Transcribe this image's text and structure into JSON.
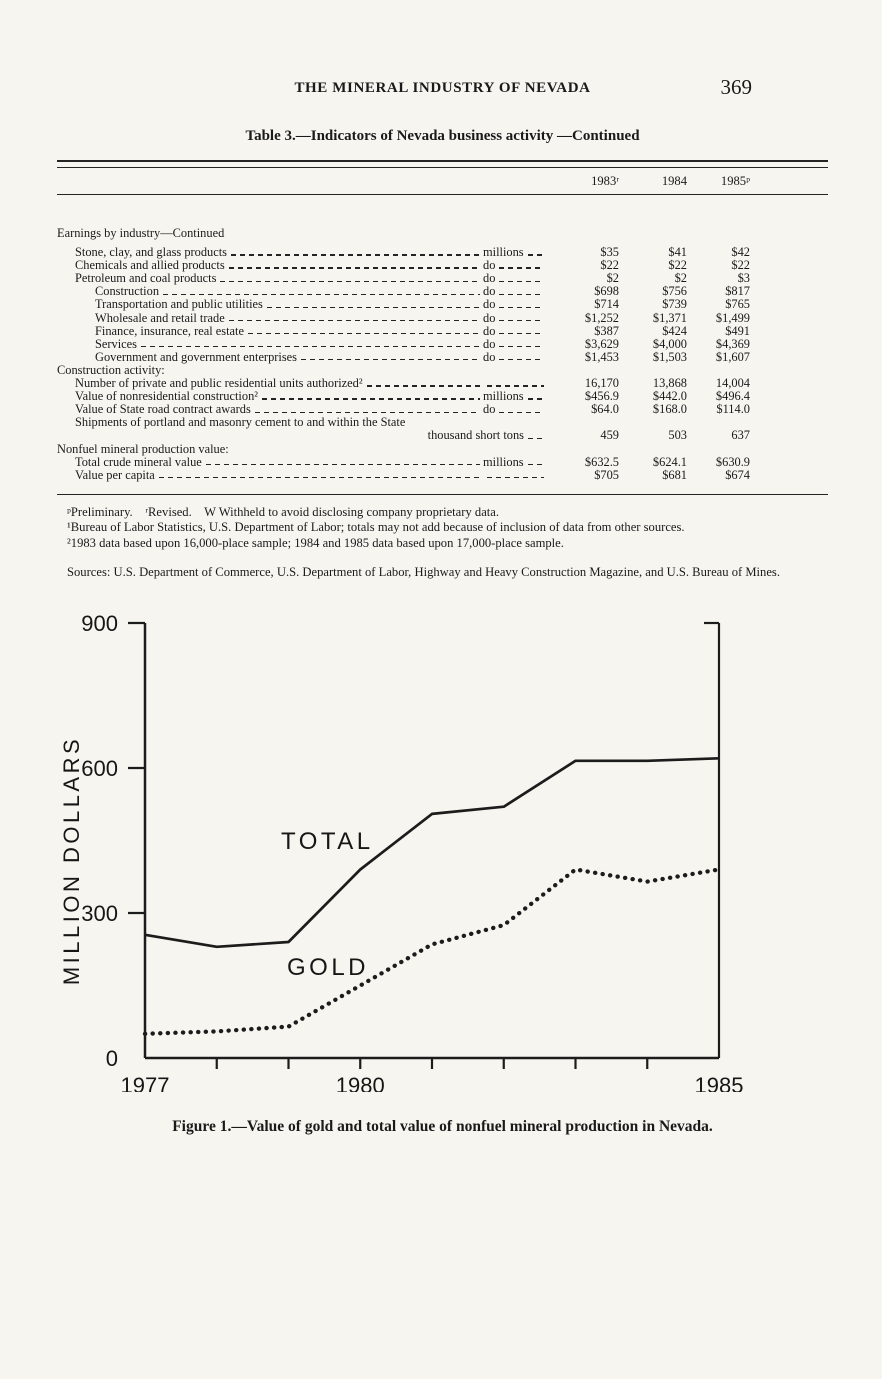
{
  "page": {
    "header_title": "THE MINERAL INDUSTRY OF NEVADA",
    "page_number": "369"
  },
  "table": {
    "title": "Table 3.—Indicators of Nevada business activity —Continued",
    "col_headers": [
      "1983ʳ",
      "1984",
      "1985ᵖ"
    ],
    "rows": [
      {
        "type": "section",
        "label": "Earnings by industry—Continued"
      },
      {
        "type": "data",
        "indent": 1,
        "label": "Stone, clay, and glass products",
        "unit": "millions",
        "values": [
          "$35",
          "$41",
          "$42"
        ]
      },
      {
        "type": "data",
        "indent": 1,
        "label": "Chemicals and allied products",
        "unit": "do",
        "values": [
          "$22",
          "$22",
          "$22"
        ]
      },
      {
        "type": "data",
        "indent": 1,
        "label": "Petroleum and coal products",
        "unit": "do",
        "values": [
          "$2",
          "$2",
          "$3"
        ]
      },
      {
        "type": "data",
        "indent": 2,
        "label": "Construction",
        "unit": "do",
        "values": [
          "$698",
          "$756",
          "$817"
        ]
      },
      {
        "type": "data",
        "indent": 2,
        "label": "Transportation and public utilities",
        "unit": "do",
        "values": [
          "$714",
          "$739",
          "$765"
        ]
      },
      {
        "type": "data",
        "indent": 2,
        "label": "Wholesale and retail trade",
        "unit": "do",
        "values": [
          "$1,252",
          "$1,371",
          "$1,499"
        ]
      },
      {
        "type": "data",
        "indent": 2,
        "label": "Finance, insurance, real estate",
        "unit": "do",
        "values": [
          "$387",
          "$424",
          "$491"
        ]
      },
      {
        "type": "data",
        "indent": 2,
        "label": "Services",
        "unit": "do",
        "values": [
          "$3,629",
          "$4,000",
          "$4,369"
        ]
      },
      {
        "type": "data",
        "indent": 2,
        "label": "Government and government enterprises",
        "unit": "do",
        "values": [
          "$1,453",
          "$1,503",
          "$1,607"
        ]
      },
      {
        "type": "section",
        "label": "Construction activity:"
      },
      {
        "type": "data",
        "indent": 1,
        "label": "Number of private and public residential units authorized²",
        "unit": "",
        "values": [
          "16,170",
          "13,868",
          "14,004"
        ]
      },
      {
        "type": "data",
        "indent": 1,
        "label": "Value of nonresidential construction²",
        "unit": "millions",
        "values": [
          "$456.9",
          "$442.0",
          "$496.4"
        ]
      },
      {
        "type": "data",
        "indent": 1,
        "label": "Value of State road contract awards",
        "unit": "do",
        "values": [
          "$64.0",
          "$168.0",
          "$114.0"
        ]
      },
      {
        "type": "data2line",
        "indent": 1,
        "label": "Shipments of portland and masonry cement to and within the State",
        "unit": "thousand short tons",
        "values": [
          "459",
          "503",
          "637"
        ]
      },
      {
        "type": "section",
        "label": "Nonfuel mineral production value:"
      },
      {
        "type": "data",
        "indent": 1,
        "label": "Total crude mineral value",
        "unit": "millions",
        "values": [
          "$632.5",
          "$624.1",
          "$630.9"
        ]
      },
      {
        "type": "data",
        "indent": 1,
        "label": "Value per capita",
        "unit": "",
        "values": [
          "$705",
          "$681",
          "$674"
        ]
      }
    ]
  },
  "footnotes": [
    "ᵖPreliminary.    ʳRevised.    W Withheld to avoid disclosing company proprietary data.",
    "¹Bureau of Labor Statistics, U.S. Department of Labor; totals may not add because of inclusion of data from other sources.",
    "²1983 data based upon 16,000-place sample; 1984 and 1985 data based upon 17,000-place sample."
  ],
  "sources": "Sources: U.S. Department of Commerce, U.S. Department of Labor, Highway and Heavy Construction Magazine, and U.S. Bureau of Mines.",
  "figure": {
    "caption": "Figure 1.—Value of gold and total value of nonfuel mineral production in Nevada."
  },
  "chart_data": {
    "type": "line",
    "title": "Value of gold and total value of nonfuel mineral production in Nevada",
    "x": [
      1977,
      1978,
      1979,
      1980,
      1981,
      1982,
      1983,
      1984,
      1985
    ],
    "series": [
      {
        "name": "TOTAL",
        "style": "solid",
        "values": [
          255,
          230,
          240,
          390,
          505,
          520,
          615,
          615,
          620
        ]
      },
      {
        "name": "GOLD",
        "style": "dotted",
        "values": [
          50,
          55,
          65,
          150,
          235,
          275,
          390,
          365,
          390
        ]
      }
    ],
    "ylabel": "MILLION DOLLARS",
    "xlabel": "",
    "yticks": [
      0,
      300,
      600,
      900
    ],
    "xtick_labels": {
      "1977": "1977",
      "1980": "1980",
      "1985": "1985"
    },
    "ylim": [
      0,
      900
    ],
    "xlim": [
      1977,
      1985
    ],
    "grid": false,
    "legend_position": "inline-labels"
  }
}
